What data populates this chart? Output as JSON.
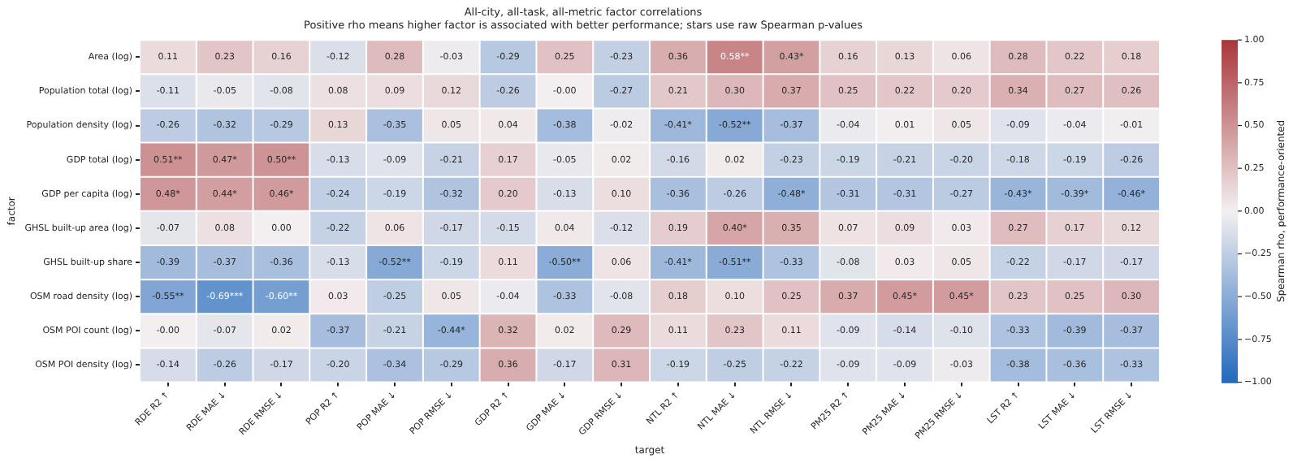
{
  "chart_data": {
    "type": "heatmap",
    "title": "All-city, all-task, all-metric factor correlations",
    "subtitle": "Positive rho means higher factor is associated with better performance; stars use raw Spearman p-values",
    "xlabel": "target",
    "ylabel": "factor",
    "clabel": "Spearman rho, performance-oriented",
    "categories": [
      "RDE R2 ↑",
      "RDE MAE ↓",
      "RDE RMSE ↓",
      "POP R2 ↑",
      "POP MAE ↓",
      "POP RMSE ↓",
      "GDP R2 ↑",
      "GDP MAE ↓",
      "GDP RMSE ↓",
      "NTL R2 ↑",
      "NTL MAE ↓",
      "NTL RMSE ↓",
      "PM25 R2 ↑",
      "PM25 MAE ↓",
      "PM25 RMSE ↓",
      "LST R2 ↑",
      "LST MAE ↓",
      "LST RMSE ↓"
    ],
    "y_categories": [
      "Area (log)",
      "Population total (log)",
      "Population density (log)",
      "GDP total (log)",
      "GDP per capita (log)",
      "GHSL built-up area (log)",
      "GHSL built-up share",
      "OSM road density (log)",
      "OSM POI count (log)",
      "OSM POI density (log)"
    ],
    "cells": [
      [
        0.11,
        0.23,
        0.16,
        -0.12,
        0.28,
        -0.03,
        -0.29,
        0.25,
        -0.23,
        0.36,
        0.58,
        0.43,
        0.16,
        0.13,
        0.06,
        0.28,
        0.22,
        0.18
      ],
      [
        -0.11,
        -0.05,
        -0.08,
        0.08,
        0.09,
        0.12,
        -0.26,
        0,
        -0.27,
        0.21,
        0.3,
        0.37,
        0.25,
        0.22,
        0.2,
        0.34,
        0.27,
        0.26
      ],
      [
        -0.26,
        -0.32,
        -0.29,
        0.13,
        -0.35,
        0.05,
        0.04,
        -0.38,
        -0.02,
        -0.41,
        -0.52,
        -0.37,
        -0.04,
        0.01,
        0.05,
        -0.09,
        -0.04,
        -0.01
      ],
      [
        0.51,
        0.47,
        0.5,
        -0.13,
        -0.09,
        -0.21,
        0.17,
        -0.05,
        0.02,
        -0.16,
        0.02,
        -0.23,
        -0.19,
        -0.21,
        -0.2,
        -0.18,
        -0.19,
        -0.26
      ],
      [
        0.48,
        0.44,
        0.46,
        -0.24,
        -0.19,
        -0.32,
        0.2,
        -0.13,
        0.1,
        -0.36,
        -0.26,
        -0.48,
        -0.31,
        -0.31,
        -0.27,
        -0.43,
        -0.39,
        -0.46
      ],
      [
        -0.07,
        0.08,
        0.0,
        -0.22,
        0.06,
        -0.17,
        -0.15,
        0.04,
        -0.12,
        0.19,
        0.4,
        0.35,
        0.07,
        0.09,
        0.03,
        0.27,
        0.17,
        0.12
      ],
      [
        -0.39,
        -0.37,
        -0.36,
        -0.13,
        -0.52,
        -0.19,
        0.11,
        -0.5,
        0.06,
        -0.41,
        -0.51,
        -0.33,
        -0.08,
        0.03,
        0.05,
        -0.22,
        -0.17,
        -0.17
      ],
      [
        -0.55,
        -0.69,
        -0.6,
        0.03,
        -0.25,
        0.05,
        -0.04,
        -0.33,
        -0.08,
        0.18,
        0.1,
        0.25,
        0.37,
        0.45,
        0.45,
        0.23,
        0.25,
        0.3
      ],
      [
        0,
        -0.07,
        0.02,
        -0.37,
        -0.21,
        -0.44,
        0.32,
        0.02,
        0.29,
        0.11,
        0.23,
        0.11,
        -0.09,
        -0.14,
        -0.1,
        -0.33,
        -0.39,
        -0.37
      ],
      [
        -0.14,
        -0.26,
        -0.17,
        -0.2,
        -0.34,
        -0.29,
        0.36,
        -0.17,
        0.31,
        -0.19,
        -0.25,
        -0.22,
        -0.09,
        -0.09,
        -0.03,
        -0.38,
        -0.36,
        -0.33
      ]
    ],
    "cell_labels": [
      [
        "0.11",
        "0.23",
        "0.16",
        "-0.12",
        "0.28",
        "-0.03",
        "-0.29",
        "0.25",
        "-0.23",
        "0.36",
        "0.58**",
        "0.43*",
        "0.16",
        "0.13",
        "0.06",
        "0.28",
        "0.22",
        "0.18"
      ],
      [
        "-0.11",
        "-0.05",
        "-0.08",
        "0.08",
        "0.09",
        "0.12",
        "-0.26",
        "-0.00",
        "-0.27",
        "0.21",
        "0.30",
        "0.37",
        "0.25",
        "0.22",
        "0.20",
        "0.34",
        "0.27",
        "0.26"
      ],
      [
        "-0.26",
        "-0.32",
        "-0.29",
        "0.13",
        "-0.35",
        "0.05",
        "0.04",
        "-0.38",
        "-0.02",
        "-0.41*",
        "-0.52**",
        "-0.37",
        "-0.04",
        "0.01",
        "0.05",
        "-0.09",
        "-0.04",
        "-0.01"
      ],
      [
        "0.51**",
        "0.47*",
        "0.50**",
        "-0.13",
        "-0.09",
        "-0.21",
        "0.17",
        "-0.05",
        "0.02",
        "-0.16",
        "0.02",
        "-0.23",
        "-0.19",
        "-0.21",
        "-0.20",
        "-0.18",
        "-0.19",
        "-0.26"
      ],
      [
        "0.48*",
        "0.44*",
        "0.46*",
        "-0.24",
        "-0.19",
        "-0.32",
        "0.20",
        "-0.13",
        "0.10",
        "-0.36",
        "-0.26",
        "-0.48*",
        "-0.31",
        "-0.31",
        "-0.27",
        "-0.43*",
        "-0.39*",
        "-0.46*"
      ],
      [
        "-0.07",
        "0.08",
        "0.00",
        "-0.22",
        "0.06",
        "-0.17",
        "-0.15",
        "0.04",
        "-0.12",
        "0.19",
        "0.40*",
        "0.35",
        "0.07",
        "0.09",
        "0.03",
        "0.27",
        "0.17",
        "0.12"
      ],
      [
        "-0.39",
        "-0.37",
        "-0.36",
        "-0.13",
        "-0.52**",
        "-0.19",
        "0.11",
        "-0.50**",
        "0.06",
        "-0.41*",
        "-0.51**",
        "-0.33",
        "-0.08",
        "0.03",
        "0.05",
        "-0.22",
        "-0.17",
        "-0.17"
      ],
      [
        "-0.55**",
        "-0.69***",
        "-0.60**",
        "0.03",
        "-0.25",
        "0.05",
        "-0.04",
        "-0.33",
        "-0.08",
        "0.18",
        "0.10",
        "0.25",
        "0.37",
        "0.45*",
        "0.45*",
        "0.23",
        "0.25",
        "0.30"
      ],
      [
        "-0.00",
        "-0.07",
        "0.02",
        "-0.37",
        "-0.21",
        "-0.44*",
        "0.32",
        "0.02",
        "0.29",
        "0.11",
        "0.23",
        "0.11",
        "-0.09",
        "-0.14",
        "-0.10",
        "-0.33",
        "-0.39",
        "-0.37"
      ],
      [
        "-0.14",
        "-0.26",
        "-0.17",
        "-0.20",
        "-0.34",
        "-0.29",
        "0.36",
        "-0.17",
        "0.31",
        "-0.19",
        "-0.25",
        "-0.22",
        "-0.09",
        "-0.09",
        "-0.03",
        "-0.38",
        "-0.36",
        "-0.33"
      ]
    ],
    "clim": [
      -1,
      1
    ],
    "cticks": [
      {
        "value": 1,
        "label": "1.00"
      },
      {
        "value": 0.75,
        "label": "0.75"
      },
      {
        "value": 0.5,
        "label": "0.50"
      },
      {
        "value": 0.25,
        "label": "0.25"
      },
      {
        "value": 0,
        "label": "0.00"
      },
      {
        "value": -0.25,
        "label": "−0.25"
      },
      {
        "value": -0.5,
        "label": "−0.50"
      },
      {
        "value": -0.75,
        "label": "−0.75"
      },
      {
        "value": -1,
        "label": "−1.00"
      }
    ]
  }
}
